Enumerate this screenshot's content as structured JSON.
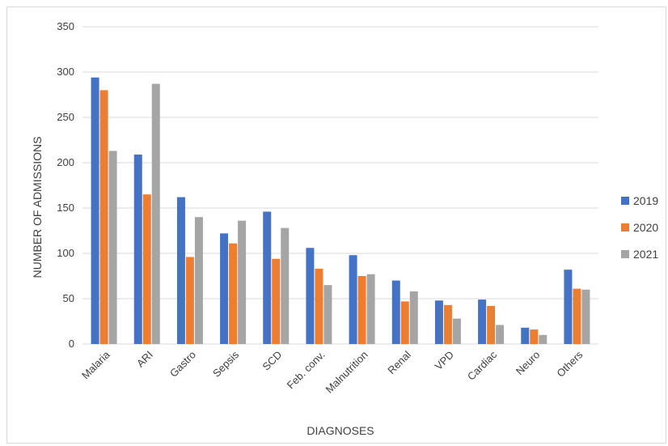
{
  "chart_data": {
    "type": "bar",
    "title": "",
    "xlabel": "DIAGNOSES",
    "ylabel": "NUMBER OF ADMISSIONS",
    "ylim": [
      0,
      350
    ],
    "yticks": [
      0,
      50,
      100,
      150,
      200,
      250,
      300,
      350
    ],
    "grid": true,
    "legend_position": "right",
    "categories": [
      "Malaria",
      "ARI",
      "Gastro",
      "Sepsis",
      "SCD",
      "Feb. conv.",
      "Malnutrition",
      "Renal",
      "VPD",
      "Cardiac",
      "Neuro",
      "Others"
    ],
    "series": [
      {
        "name": "2019",
        "color": "#4472c4",
        "values": [
          294,
          209,
          162,
          122,
          146,
          106,
          98,
          70,
          48,
          49,
          18,
          82
        ]
      },
      {
        "name": "2020",
        "color": "#ed7d31",
        "values": [
          280,
          165,
          96,
          111,
          94,
          83,
          75,
          47,
          43,
          42,
          16,
          61
        ]
      },
      {
        "name": "2021",
        "color": "#a5a5a5",
        "values": [
          213,
          287,
          140,
          136,
          128,
          65,
          77,
          58,
          28,
          21,
          10,
          60
        ]
      }
    ]
  }
}
